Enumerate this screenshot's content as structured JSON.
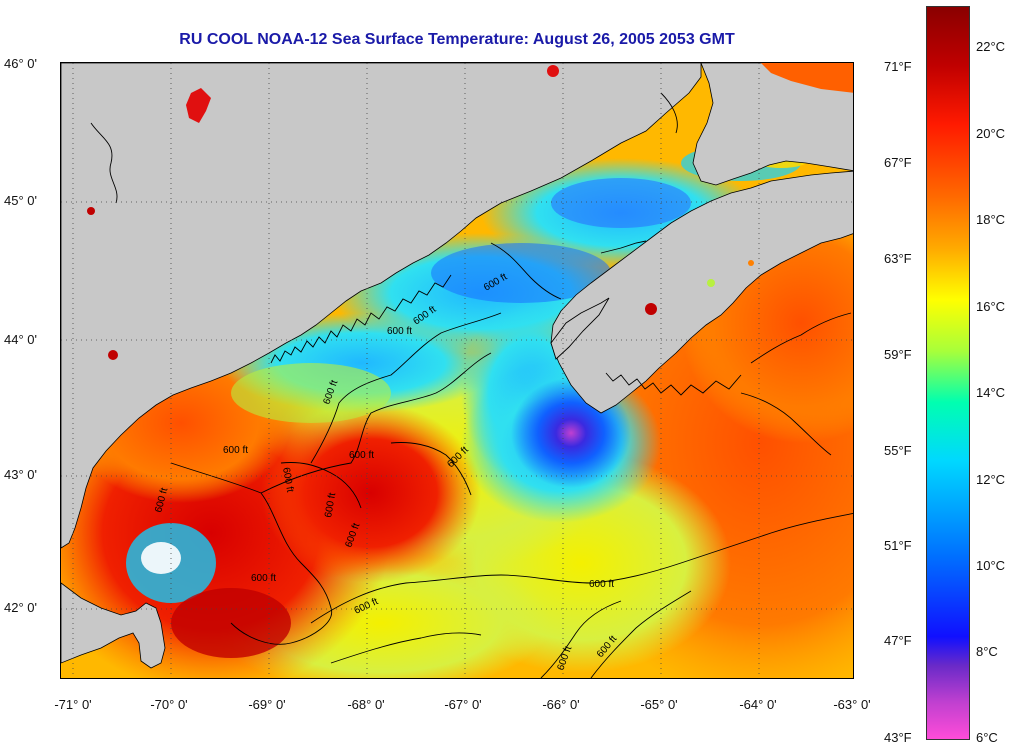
{
  "title": "RU COOL  NOAA-12  Sea Surface Temperature:  August 26, 2005 2053 GMT",
  "lat_labels": [
    "46° 0'",
    "45° 0'",
    "44° 0'",
    "43° 0'",
    "42° 0'"
  ],
  "lon_labels": [
    "-71° 0'",
    "-70° 0'",
    "-69° 0'",
    "-68° 0'",
    "-67° 0'",
    "-66° 0'",
    "-65° 0'",
    "-64° 0'",
    "-63° 0'"
  ],
  "colorbar": {
    "f_labels": [
      "71°F",
      "67°F",
      "63°F",
      "59°F",
      "55°F",
      "51°F",
      "47°F",
      "43°F"
    ],
    "c_labels": [
      "22°C",
      "20°C",
      "18°C",
      "16°C",
      "14°C",
      "12°C",
      "10°C",
      "8°C",
      "6°C"
    ]
  },
  "contour_labels": [
    "600 ft",
    "600 ft",
    "600 ft",
    "600 ft",
    "600 ft",
    "600 ft",
    "600 ft",
    "600 ft",
    "600 ft",
    "600 ft",
    "600 ft",
    "600 ft",
    "600 ft",
    "600 ft",
    "600 ft",
    "600 ft"
  ],
  "colors": {
    "title": "#1a1aa8",
    "land": "#c8c8c8"
  }
}
